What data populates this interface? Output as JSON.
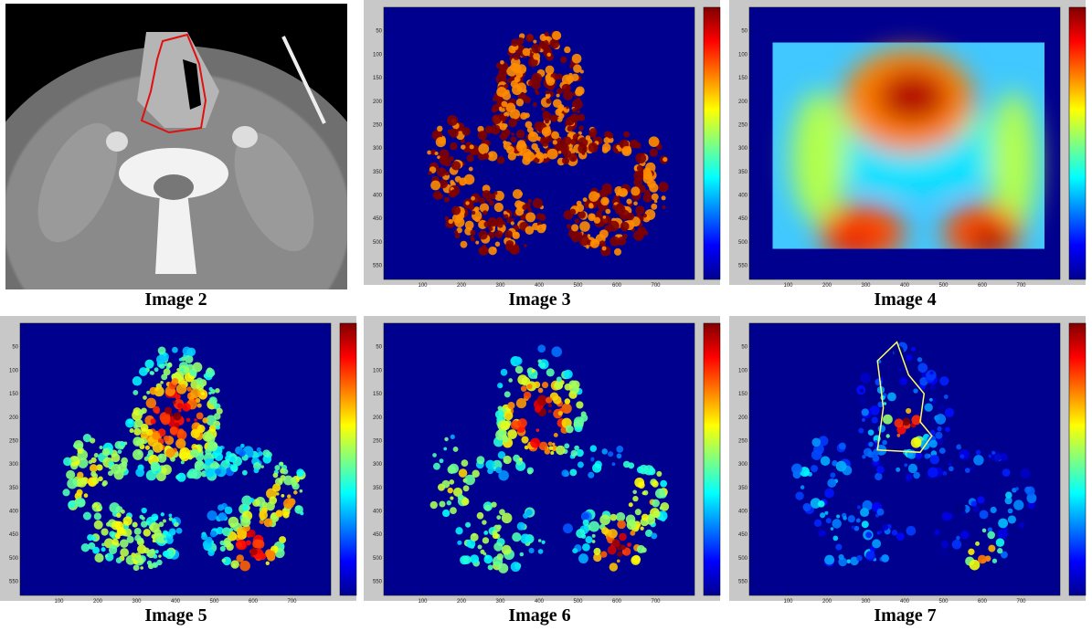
{
  "figure": {
    "panels": [
      {
        "caption": "Image 2",
        "kind": "ct"
      },
      {
        "caption": "Image 3",
        "kind": "binary"
      },
      {
        "caption": "Image 4",
        "kind": "smooth"
      },
      {
        "caption": "Image 5",
        "kind": "dense"
      },
      {
        "caption": "Image 6",
        "kind": "sparse"
      },
      {
        "caption": "Image 7",
        "kind": "outlined"
      }
    ],
    "axes": {
      "xlim": [
        0,
        800
      ],
      "ylim": [
        0,
        580
      ],
      "xticks": [
        100,
        200,
        300,
        400,
        500,
        600,
        700
      ],
      "yticks": [
        50,
        100,
        150,
        200,
        250,
        300,
        350,
        400,
        450,
        500,
        550
      ]
    }
  }
}
